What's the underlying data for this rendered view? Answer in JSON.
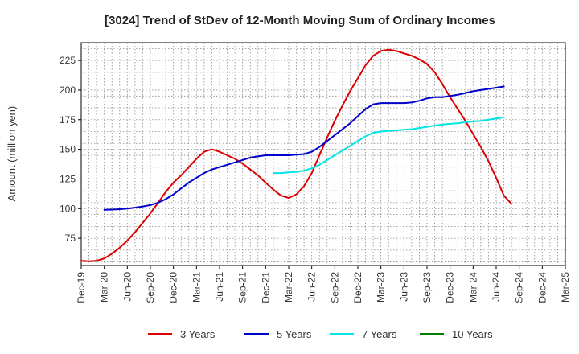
{
  "chart_data": {
    "type": "line",
    "title": "[3024]  Trend of StDev of 12-Month Moving Sum of Ordinary Incomes",
    "xlabel": "",
    "ylabel": "Amount (million yen)",
    "ylim": [
      52,
      240
    ],
    "yticks": [
      75,
      100,
      125,
      150,
      175,
      200,
      225
    ],
    "xticks": [
      "Dec-19",
      "Mar-20",
      "Jun-20",
      "Sep-20",
      "Dec-20",
      "Mar-21",
      "Jun-21",
      "Sep-21",
      "Dec-21",
      "Mar-22",
      "Jun-22",
      "Sep-22",
      "Dec-22",
      "Mar-23",
      "Jun-23",
      "Sep-23",
      "Dec-23",
      "Mar-24",
      "Jun-24",
      "Sep-24",
      "Dec-24",
      "Mar-25"
    ],
    "grid": true,
    "series": [
      {
        "name": "3 Years",
        "color": "#dd0000",
        "start_index": 0,
        "values": [
          56,
          55.5,
          56,
          58,
          62,
          67,
          73,
          80,
          88,
          96,
          105,
          114,
          122,
          128,
          135,
          142,
          148,
          150,
          148,
          145,
          142,
          138,
          133,
          128,
          122,
          116,
          111,
          109,
          112,
          119,
          130,
          145,
          160,
          174,
          187,
          199,
          210,
          221,
          229,
          233,
          234,
          233,
          231,
          229,
          226,
          222,
          215,
          205,
          194,
          184,
          174,
          163,
          152,
          140,
          126,
          111,
          104
        ]
      },
      {
        "name": "5 Years",
        "color": "#0000cc",
        "start_index": 3,
        "values": [
          99,
          99.2,
          99.5,
          100,
          100.8,
          101.8,
          103,
          105,
          108,
          112,
          117,
          122,
          126,
          130,
          133,
          135,
          137,
          139,
          141,
          143,
          144,
          145,
          145,
          145,
          145,
          145.5,
          146,
          148,
          152,
          157,
          162,
          167,
          172,
          178,
          184,
          188,
          189,
          189,
          189,
          189,
          189.5,
          191,
          193,
          194,
          194,
          195,
          196,
          197.5,
          199,
          200,
          201,
          202,
          203
        ]
      },
      {
        "name": "7 Years",
        "color": "#00e5e5",
        "start_index": 25,
        "values": [
          130,
          130,
          130.5,
          131,
          132,
          134,
          137,
          141,
          145,
          149,
          153,
          157,
          161,
          164,
          165,
          165.5,
          166,
          166.5,
          167,
          168,
          169,
          170,
          171,
          171.5,
          172,
          173,
          173.5,
          174,
          175,
          176,
          177
        ]
      },
      {
        "name": "10 Years",
        "color": "#008000",
        "start_index": 0,
        "values": []
      }
    ]
  }
}
